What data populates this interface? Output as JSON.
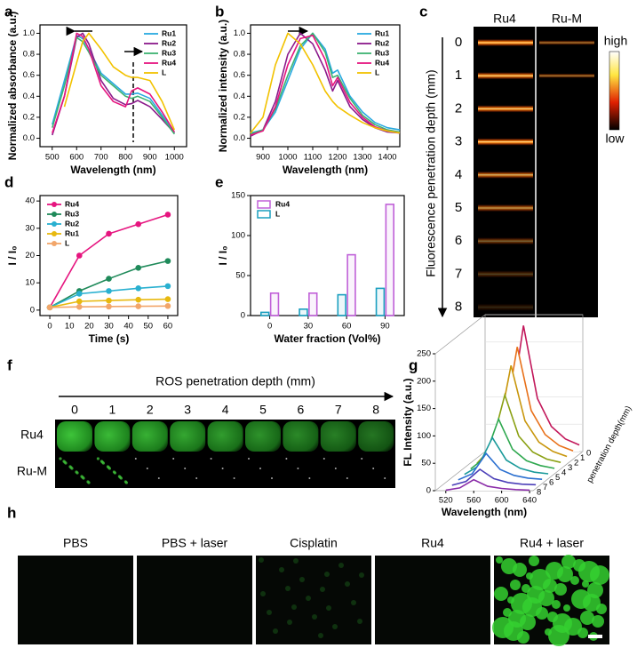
{
  "chart_data": [
    {
      "label": "a",
      "type": "line",
      "xlabel": "Wavelength (nm)",
      "ylabel": "Normalized absorbance (a.u.)",
      "x": [
        500,
        550,
        600,
        625,
        650,
        700,
        750,
        800,
        825,
        850,
        900,
        950,
        1000
      ],
      "series": [
        {
          "name": "Ru1",
          "color": "#29a9e0",
          "values": [
            0.13,
            0.55,
            0.98,
            0.95,
            0.85,
            0.62,
            0.52,
            0.42,
            0.42,
            0.43,
            0.38,
            0.22,
            0.05
          ]
        },
        {
          "name": "Ru2",
          "color": "#8b1a8b",
          "values": [
            0.03,
            0.4,
            0.96,
            1.0,
            0.9,
            0.55,
            0.38,
            0.32,
            0.33,
            0.36,
            0.3,
            0.18,
            0.05
          ]
        },
        {
          "name": "Ru3",
          "color": "#3cb371",
          "values": [
            0.1,
            0.5,
            0.96,
            0.92,
            0.82,
            0.6,
            0.5,
            0.4,
            0.38,
            0.4,
            0.35,
            0.2,
            0.04
          ]
        },
        {
          "name": "Ru4",
          "color": "#e6157f",
          "values": [
            0.05,
            0.4,
            1.0,
            0.97,
            0.85,
            0.5,
            0.35,
            0.3,
            0.45,
            0.48,
            0.42,
            0.25,
            0.06
          ]
        },
        {
          "name": "L",
          "color": "#f2c200",
          "values": [
            null,
            0.3,
            0.72,
            0.92,
            1.0,
            0.85,
            0.68,
            0.6,
            0.58,
            0.58,
            0.55,
            0.35,
            0.08
          ]
        }
      ],
      "xlim": [
        450,
        1050
      ],
      "ylim": [
        -0.08,
        1.08
      ],
      "xticks": [
        500,
        600,
        700,
        800,
        900,
        1000
      ],
      "yticks": [
        {
          "value": 0,
          "label": "0.0"
        },
        0.2,
        0.4,
        0.6,
        0.8,
        {
          "value": 1,
          "label": "1.0"
        }
      ],
      "legend": "top-right"
    },
    {
      "label": "b",
      "type": "line",
      "xlabel": "Wavelength (nm)",
      "ylabel": "Normalized intensity (a.u.)",
      "x": [
        850,
        900,
        950,
        1000,
        1050,
        1100,
        1150,
        1180,
        1200,
        1250,
        1300,
        1350,
        1400,
        1450
      ],
      "series": [
        {
          "name": "Ru1",
          "color": "#29a9e0",
          "values": [
            0.05,
            0.08,
            0.25,
            0.55,
            0.85,
            1.0,
            0.85,
            0.62,
            0.65,
            0.4,
            0.25,
            0.15,
            0.1,
            0.08
          ]
        },
        {
          "name": "Ru2",
          "color": "#8b1a8b",
          "values": [
            0.02,
            0.08,
            0.35,
            0.8,
            1.0,
            0.9,
            0.65,
            0.45,
            0.55,
            0.3,
            0.18,
            0.1,
            0.06,
            0.05
          ]
        },
        {
          "name": "Ru3",
          "color": "#3cb371",
          "values": [
            0.04,
            0.08,
            0.28,
            0.6,
            0.88,
            1.0,
            0.82,
            0.58,
            0.6,
            0.38,
            0.22,
            0.13,
            0.08,
            0.06
          ]
        },
        {
          "name": "Ru4",
          "color": "#e6157f",
          "values": [
            0.03,
            0.07,
            0.3,
            0.7,
            0.95,
            0.98,
            0.75,
            0.5,
            0.58,
            0.34,
            0.2,
            0.11,
            0.07,
            0.05
          ]
        },
        {
          "name": "L",
          "color": "#f2c200",
          "values": [
            0.05,
            0.2,
            0.7,
            1.0,
            0.9,
            0.7,
            0.45,
            0.35,
            0.3,
            0.22,
            0.15,
            0.1,
            0.07,
            0.05
          ]
        }
      ],
      "xlim": [
        850,
        1450
      ],
      "ylim": [
        -0.08,
        1.08
      ],
      "xticks": [
        900,
        1000,
        1100,
        1200,
        1300,
        1400
      ],
      "yticks": [
        {
          "value": 0,
          "label": "0.0"
        },
        0.2,
        0.4,
        0.6,
        0.8,
        {
          "value": 1,
          "label": "1.0"
        }
      ],
      "legend": "top-right"
    },
    {
      "label": "d",
      "type": "line",
      "xlabel": "Time (s)",
      "ylabel": "I / I₀",
      "markers": true,
      "x": [
        0,
        15,
        30,
        45,
        60
      ],
      "series": [
        {
          "name": "Ru4",
          "color": "#e6157f",
          "values": [
            1,
            20,
            28,
            31.5,
            35
          ]
        },
        {
          "name": "Ru3",
          "color": "#1f8a5a",
          "values": [
            1,
            7,
            11.5,
            15.5,
            18
          ]
        },
        {
          "name": "Ru2",
          "color": "#29b0d0",
          "values": [
            1,
            6,
            7,
            8,
            8.8
          ]
        },
        {
          "name": "Ru1",
          "color": "#e8b90f",
          "values": [
            1,
            3.2,
            3.5,
            3.8,
            4
          ]
        },
        {
          "name": "L",
          "color": "#f2a66a",
          "values": [
            1,
            1.2,
            1.3,
            1.4,
            1.5
          ]
        }
      ],
      "xlim": [
        -5,
        65
      ],
      "ylim": [
        -2,
        42
      ],
      "xticks": [
        0,
        10,
        20,
        30,
        40,
        50,
        60
      ],
      "yticks": [
        0,
        10,
        20,
        30,
        40
      ],
      "legend": "top-left"
    },
    {
      "label": "e",
      "type": "bar",
      "xlabel": "Water fraction (Vol%)",
      "ylabel": "I / I₀",
      "categories": [
        "0",
        "30",
        "60",
        "90"
      ],
      "series": [
        {
          "name": "Ru4",
          "color": "#c060d8",
          "values": [
            28,
            28,
            76,
            139
          ]
        },
        {
          "name": "L",
          "color": "#1a9fbf",
          "values": [
            4,
            8,
            26,
            34
          ]
        }
      ],
      "ylim": [
        0,
        150
      ],
      "yticks": [
        0,
        50,
        100,
        150
      ],
      "legend": "top-left"
    },
    {
      "label": "g",
      "type": "waterfall",
      "xlabel": "Wavelength (nm)",
      "ylabel": "FL Intensity (a.u.)",
      "zlabel": "penetration depth(mm)",
      "x": [
        520,
        540,
        560,
        580,
        600,
        620,
        640
      ],
      "series": [
        {
          "name": "0",
          "color": "#c2185b",
          "values": [
            9,
            58,
            230,
            97,
            46,
            23,
            12
          ]
        },
        {
          "name": "1",
          "color": "#e8711a",
          "values": [
            8,
            50,
            200,
            84,
            40,
            20,
            10
          ]
        },
        {
          "name": "2",
          "color": "#c8960c",
          "values": [
            7,
            44,
            175,
            74,
            35,
            18,
            9
          ]
        },
        {
          "name": "3",
          "color": "#8aa012",
          "values": [
            5,
            33,
            130,
            55,
            26,
            13,
            7
          ]
        },
        {
          "name": "4",
          "color": "#2fa84f",
          "values": [
            4,
            24,
            95,
            40,
            19,
            10,
            5
          ]
        },
        {
          "name": "5",
          "color": "#1a9a9a",
          "values": [
            3,
            18,
            70,
            29,
            14,
            7,
            4
          ]
        },
        {
          "name": "6",
          "color": "#2a6fd0",
          "values": [
            2,
            13,
            50,
            21,
            10,
            5,
            3
          ]
        },
        {
          "name": "7",
          "color": "#4b3fb8",
          "values": [
            1,
            8,
            30,
            13,
            6,
            3,
            2
          ]
        },
        {
          "name": "8",
          "color": "#8a2ba8",
          "values": [
            1,
            5,
            20,
            8,
            4,
            2,
            1
          ]
        }
      ],
      "xlim": [
        505,
        645
      ],
      "ylim": [
        0,
        250
      ],
      "xticks": [
        520,
        560,
        600,
        640
      ],
      "yticks": [
        0,
        50,
        100,
        150,
        200,
        250
      ]
    }
  ],
  "panel_c": {
    "label": "c",
    "columns": [
      "Ru4",
      "Ru-M"
    ],
    "depths": [
      "0",
      "1",
      "2",
      "3",
      "4",
      "5",
      "6",
      "7",
      "8"
    ],
    "ylabel": "Fluorescence penetration depth (mm)",
    "colorbar_high": "high",
    "colorbar_low": "low"
  },
  "panel_f": {
    "label": "f",
    "title": "ROS penetration depth (mm)",
    "depths": [
      "0",
      "1",
      "2",
      "3",
      "4",
      "5",
      "6",
      "7",
      "8"
    ],
    "rows": [
      "Ru4",
      "Ru-M"
    ]
  },
  "panel_h": {
    "label": "h",
    "conditions": [
      "PBS",
      "PBS + laser",
      "Cisplatin",
      "Ru4",
      "Ru4 + laser"
    ]
  }
}
